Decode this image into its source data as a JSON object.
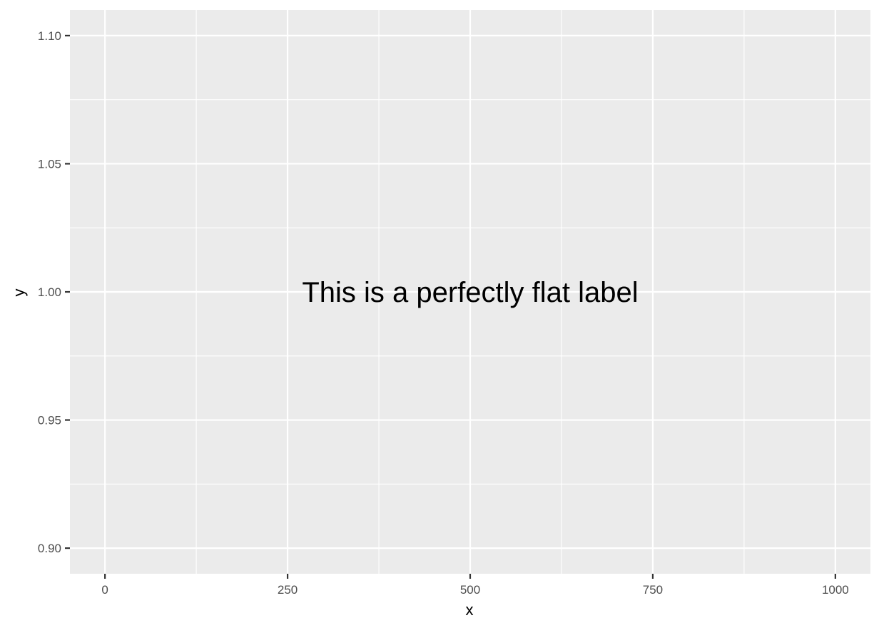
{
  "chart_data": {
    "type": "scatter",
    "title": "",
    "xlabel": "x",
    "ylabel": "y",
    "xlim": [
      -48,
      1048
    ],
    "ylim": [
      0.89,
      1.11
    ],
    "x_ticks": [
      0,
      250,
      500,
      750,
      1000
    ],
    "x_tick_labels": [
      "0",
      "250",
      "500",
      "750",
      "1000"
    ],
    "x_minor_ticks": [
      125,
      375,
      625,
      875
    ],
    "y_ticks": [
      0.9,
      0.95,
      1.0,
      1.05,
      1.1
    ],
    "y_tick_labels": [
      "0.90",
      "0.95",
      "1.00",
      "1.05",
      "1.10"
    ],
    "y_minor_ticks": [
      0.925,
      0.975,
      1.025,
      1.075
    ],
    "grid": true,
    "legend": "none",
    "annotations": [
      {
        "text": "This is a perfectly flat label",
        "x": 500,
        "y": 1.0
      }
    ],
    "colors": {
      "panel": "#ebebeb",
      "grid": "#ffffff",
      "tick_text": "#4d4d4d",
      "text": "#000000"
    }
  }
}
